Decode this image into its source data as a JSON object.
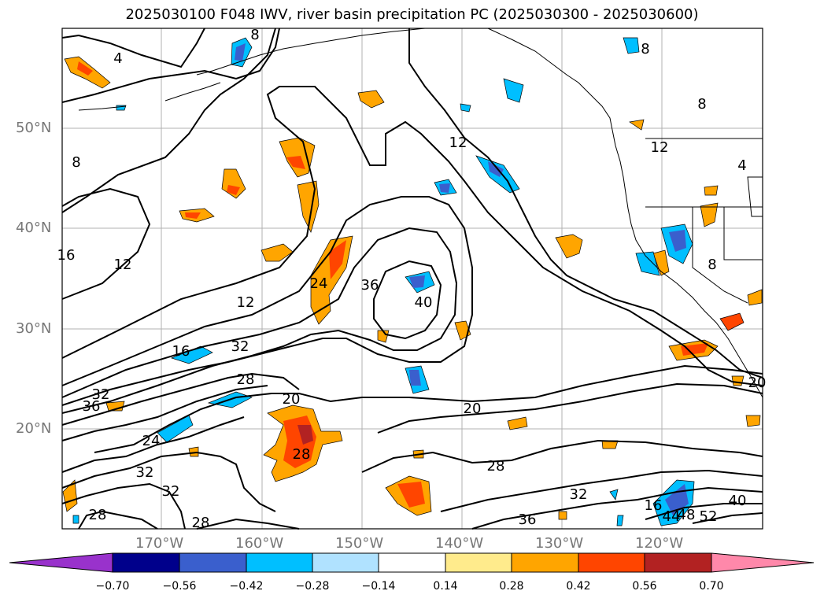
{
  "title": "2025030100 F048 IWV, river basin precipitation PC (2025030300 - 2025030600)",
  "axes": {
    "lat_labels": [
      "50°N",
      "40°N",
      "30°N",
      "20°N"
    ],
    "lon_labels": [
      "170°W",
      "160°W",
      "150°W",
      "140°W",
      "130°W",
      "120°W"
    ]
  },
  "contour_labels": [
    "8",
    "4",
    "8",
    "8",
    "8",
    "12",
    "12",
    "4",
    "16",
    "12",
    "12",
    "24",
    "36",
    "40",
    "16",
    "32",
    "28",
    "32",
    "36",
    "20",
    "20",
    "24",
    "28",
    "28",
    "32",
    "32",
    "28",
    "20",
    "28",
    "32",
    "16",
    "44",
    "48",
    "52",
    "40",
    "36",
    "8"
  ],
  "colorbar": {
    "tick_labels": [
      "−0.70",
      "−0.56",
      "−0.42",
      "−0.28",
      "−0.14",
      "0.14",
      "0.28",
      "0.42",
      "0.56",
      "0.70"
    ],
    "colors": [
      "#9932cc",
      "#00008b",
      "#3a5fcd",
      "#00bfff",
      "#b0e2ff",
      "#ffffff",
      "#ffeb8c",
      "#ffa500",
      "#ff4500",
      "#b22222",
      "#ff88aa"
    ]
  },
  "colors": {
    "positive_low": "#ffeb8c",
    "positive_mid": "#ffa500",
    "positive_high": "#ff4500",
    "positive_max": "#b22222",
    "negative_low": "#b0e2ff",
    "negative_mid": "#00bfff",
    "negative_high": "#3a5fcd",
    "negative_max": "#00008b",
    "grid": "#b0b0b0",
    "coastline": "#000000"
  }
}
